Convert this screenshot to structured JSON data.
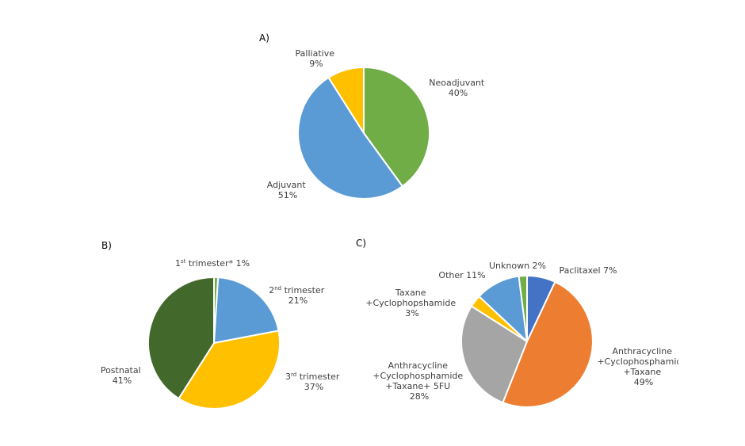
{
  "chart_data": [
    {
      "type": "pie",
      "panel_label": "A)",
      "slices": [
        {
          "label": "Neoadjuvant",
          "value": 40,
          "value_text": "40%",
          "color": "#70ad47"
        },
        {
          "label": "Adjuvant",
          "value": 51,
          "value_text": "51%",
          "color": "#5b9bd5"
        },
        {
          "label": "Palliative",
          "value": 9,
          "value_text": "9%",
          "color": "#ffc000"
        }
      ]
    },
    {
      "type": "pie",
      "panel_label": "B)",
      "slices": [
        {
          "label_parts": [
            {
              "text": "1"
            },
            {
              "text": "st",
              "sup": true
            },
            {
              "text": " trimester* 1%"
            }
          ],
          "value": 1,
          "color": "#70ad47"
        },
        {
          "label_parts": [
            {
              "text": "2"
            },
            {
              "text": "nd",
              "sup": true
            },
            {
              "text": " trimester"
            }
          ],
          "value": 21,
          "value_text": "21%",
          "color": "#5b9bd5"
        },
        {
          "label_parts": [
            {
              "text": "3"
            },
            {
              "text": "rd",
              "sup": true
            },
            {
              "text": " trimester"
            }
          ],
          "value": 37,
          "value_text": "37%",
          "color": "#ffc000"
        },
        {
          "label": "Postnatal",
          "value": 41,
          "value_text": "41%",
          "color": "#43682b"
        }
      ]
    },
    {
      "type": "pie",
      "panel_label": "C)",
      "slices": [
        {
          "label": "Paclitaxel 7%",
          "value": 7,
          "color": "#4472c4"
        },
        {
          "label_lines": [
            "Anthracycline",
            "+Cyclophosphamide",
            "+Taxane"
          ],
          "value": 49,
          "value_text": "49%",
          "color": "#ed7d31"
        },
        {
          "label_lines": [
            "Anthracycline",
            "+Cyclophosphamide",
            "+Taxane+ 5FU"
          ],
          "value": 28,
          "value_text": "28%",
          "color": "#a5a5a5"
        },
        {
          "label_lines": [
            "Taxane",
            "+Cyclophopshamide"
          ],
          "value": 3,
          "value_text": "3%",
          "color": "#ffc000"
        },
        {
          "label": "Other 11%",
          "value": 11,
          "color": "#5b9bd5"
        },
        {
          "label": "Unknown 2%",
          "value": 2,
          "color": "#70ad47"
        }
      ]
    }
  ]
}
